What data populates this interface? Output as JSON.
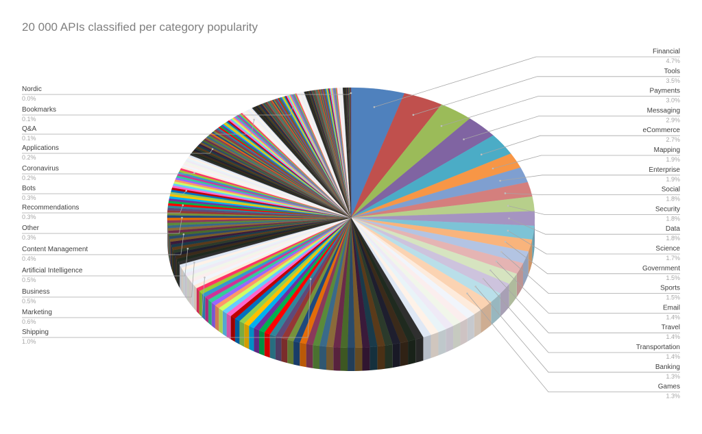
{
  "chart_data": {
    "type": "pie",
    "title": "20 000 APIs classified per category popularity",
    "right_labels": [
      {
        "name": "Financial",
        "pct": "4.7%",
        "value": 4.7,
        "color": "#4f81bd"
      },
      {
        "name": "Tools",
        "pct": "3.5%",
        "value": 3.5,
        "color": "#c0504d"
      },
      {
        "name": "Payments",
        "pct": "3.0%",
        "value": 3.0,
        "color": "#9bbb59"
      },
      {
        "name": "Messaging",
        "pct": "2.9%",
        "value": 2.9,
        "color": "#8064a2"
      },
      {
        "name": "eCommerce",
        "pct": "2.7%",
        "value": 2.7,
        "color": "#4bacc6"
      },
      {
        "name": "Mapping",
        "pct": "1.9%",
        "value": 1.9,
        "color": "#f79646"
      },
      {
        "name": "Enterprise",
        "pct": "1.9%",
        "value": 1.9,
        "color": "#7f9fd0"
      },
      {
        "name": "Social",
        "pct": "1.8%",
        "value": 1.8,
        "color": "#d47f7d"
      },
      {
        "name": "Security",
        "pct": "1.8%",
        "value": 1.8,
        "color": "#b7cf8b"
      },
      {
        "name": "Data",
        "pct": "1.8%",
        "value": 1.8,
        "color": "#a594c1"
      },
      {
        "name": "Science",
        "pct": "1.7%",
        "value": 1.7,
        "color": "#7dc3d6"
      },
      {
        "name": "Government",
        "pct": "1.5%",
        "value": 1.5,
        "color": "#f9b47c"
      },
      {
        "name": "Sports",
        "pct": "1.5%",
        "value": 1.5,
        "color": "#b3c4e3"
      },
      {
        "name": "Email",
        "pct": "1.4%",
        "value": 1.4,
        "color": "#e5b4b3"
      },
      {
        "name": "Travel",
        "pct": "1.4%",
        "value": 1.4,
        "color": "#d6e4c0"
      },
      {
        "name": "Transportation",
        "pct": "1.4%",
        "value": 1.4,
        "color": "#cdc3dd"
      },
      {
        "name": "Banking",
        "pct": "1.3%",
        "value": 1.3,
        "color": "#b9dfe9"
      },
      {
        "name": "Games",
        "pct": "1.3%",
        "value": 1.3,
        "color": "#fbd3b2"
      }
    ],
    "left_labels": [
      {
        "name": "Nordic",
        "pct": "0.0%",
        "value": 0.0
      },
      {
        "name": "Bookmarks",
        "pct": "0.1%",
        "value": 0.1
      },
      {
        "name": "Q&A",
        "pct": "0.1%",
        "value": 0.1
      },
      {
        "name": "Applications",
        "pct": "0.2%",
        "value": 0.2
      },
      {
        "name": "Coronavirus",
        "pct": "0.2%",
        "value": 0.2
      },
      {
        "name": "Bots",
        "pct": "0.3%",
        "value": 0.3
      },
      {
        "name": "Recommendations",
        "pct": "0.3%",
        "value": 0.3
      },
      {
        "name": "Other",
        "pct": "0.3%",
        "value": 0.3
      },
      {
        "name": "Content Management",
        "pct": "0.4%",
        "value": 0.4
      },
      {
        "name": "Artificial Intelligence",
        "pct": "0.5%",
        "value": 0.5
      },
      {
        "name": "Business",
        "pct": "0.5%",
        "value": 0.5
      },
      {
        "name": "Marketing",
        "pct": "0.6%",
        "value": 0.6
      },
      {
        "name": "Shipping",
        "pct": "1.0%",
        "value": 1.0
      }
    ],
    "legend": "none"
  }
}
